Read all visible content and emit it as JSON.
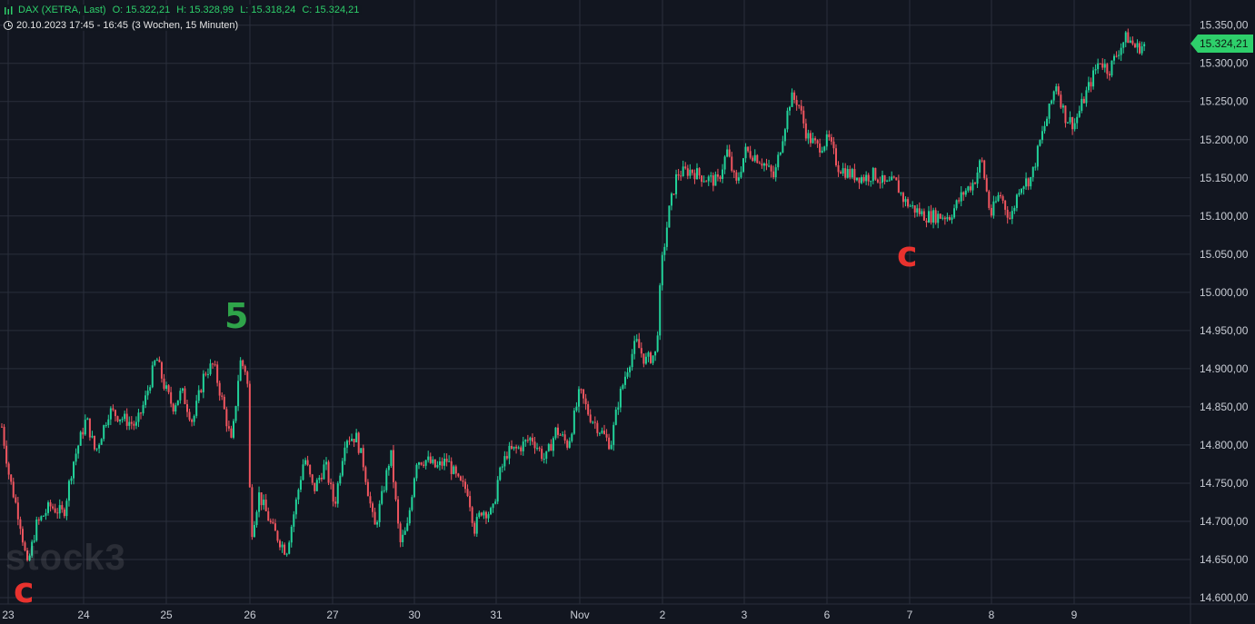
{
  "header": {
    "symbol_line": "DAX (XETRA, Last)",
    "open": "O: 15.322,21",
    "high": "H: 15.328,99",
    "low": "L: 15.318,24",
    "close": "C: 15.324,21",
    "range_text": "20.10.2023 17:45 - 16:45",
    "period_text": "(3 Wochen, 15 Minuten)"
  },
  "last_price_label": "15.324,21",
  "watermark": "stock3",
  "wave_labels": [
    "c",
    "5",
    "c"
  ],
  "colors": {
    "background": "#121620",
    "grid": "#2a2f3b",
    "up": "#22d39a",
    "down": "#f0555f",
    "axis_text": "#c8ccd4",
    "last_price": "#2ecf6b",
    "label_red": "#e8322e",
    "label_green": "#2fa44a"
  },
  "chart_data": {
    "type": "candlestick",
    "title": "DAX (XETRA, Last)",
    "interval": "15 Minuten",
    "ylim": [
      14590,
      15360
    ],
    "y_ticks": [
      {
        "v": 14600,
        "label": "14.600,00"
      },
      {
        "v": 14650,
        "label": "14.650,00"
      },
      {
        "v": 14700,
        "label": "14.700,00"
      },
      {
        "v": 14750,
        "label": "14.750,00"
      },
      {
        "v": 14800,
        "label": "14.800,00"
      },
      {
        "v": 14850,
        "label": "14.850,00"
      },
      {
        "v": 14900,
        "label": "14.900,00"
      },
      {
        "v": 14950,
        "label": "14.950,00"
      },
      {
        "v": 15000,
        "label": "15.000,00"
      },
      {
        "v": 15050,
        "label": "15.050,00"
      },
      {
        "v": 15100,
        "label": "15.100,00"
      },
      {
        "v": 15150,
        "label": "15.150,00"
      },
      {
        "v": 15200,
        "label": "15.200,00"
      },
      {
        "v": 15250,
        "label": "15.250,00"
      },
      {
        "v": 15300,
        "label": "15.300,00"
      },
      {
        "v": 15350,
        "label": "15.350,00"
      }
    ],
    "x_ticks": [
      "23",
      "24",
      "25",
      "26",
      "27",
      "30",
      "31",
      "Nov",
      "2",
      "3",
      "6",
      "7",
      "8",
      "9"
    ],
    "grid": true,
    "last_price": 15324.21,
    "anchors": [
      [
        0,
        14840
      ],
      [
        10,
        14760
      ],
      [
        22,
        14700
      ],
      [
        30,
        14640
      ],
      [
        40,
        14695
      ],
      [
        55,
        14720
      ],
      [
        70,
        14710
      ],
      [
        80,
        14775
      ],
      [
        95,
        14835
      ],
      [
        105,
        14790
      ],
      [
        120,
        14845
      ],
      [
        135,
        14835
      ],
      [
        150,
        14825
      ],
      [
        160,
        14860
      ],
      [
        172,
        14915
      ],
      [
        180,
        14880
      ],
      [
        190,
        14850
      ],
      [
        200,
        14870
      ],
      [
        212,
        14830
      ],
      [
        225,
        14895
      ],
      [
        235,
        14905
      ],
      [
        245,
        14855
      ],
      [
        255,
        14800
      ],
      [
        264,
        14910
      ],
      [
        272,
        14895
      ],
      [
        276,
        14680
      ],
      [
        285,
        14735
      ],
      [
        300,
        14690
      ],
      [
        315,
        14660
      ],
      [
        325,
        14720
      ],
      [
        335,
        14785
      ],
      [
        345,
        14740
      ],
      [
        358,
        14775
      ],
      [
        368,
        14720
      ],
      [
        380,
        14810
      ],
      [
        392,
        14810
      ],
      [
        400,
        14775
      ],
      [
        412,
        14690
      ],
      [
        420,
        14730
      ],
      [
        430,
        14790
      ],
      [
        440,
        14670
      ],
      [
        448,
        14690
      ],
      [
        458,
        14780
      ],
      [
        470,
        14780
      ],
      [
        480,
        14770
      ],
      [
        492,
        14780
      ],
      [
        505,
        14750
      ],
      [
        515,
        14740
      ],
      [
        522,
        14690
      ],
      [
        530,
        14715
      ],
      [
        542,
        14710
      ],
      [
        548,
        14755
      ],
      [
        558,
        14790
      ],
      [
        570,
        14795
      ],
      [
        585,
        14810
      ],
      [
        600,
        14780
      ],
      [
        612,
        14820
      ],
      [
        625,
        14800
      ],
      [
        638,
        14870
      ],
      [
        648,
        14840
      ],
      [
        660,
        14820
      ],
      [
        672,
        14800
      ],
      [
        680,
        14855
      ],
      [
        690,
        14900
      ],
      [
        700,
        14935
      ],
      [
        710,
        14910
      ],
      [
        722,
        14920
      ],
      [
        728,
        15035
      ],
      [
        736,
        15105
      ],
      [
        745,
        15155
      ],
      [
        760,
        15160
      ],
      [
        775,
        15150
      ],
      [
        790,
        15145
      ],
      [
        800,
        15185
      ],
      [
        810,
        15140
      ],
      [
        820,
        15185
      ],
      [
        830,
        15180
      ],
      [
        840,
        15170
      ],
      [
        852,
        15150
      ],
      [
        862,
        15210
      ],
      [
        870,
        15255
      ],
      [
        878,
        15250
      ],
      [
        888,
        15205
      ],
      [
        900,
        15190
      ],
      [
        912,
        15200
      ],
      [
        922,
        15165
      ],
      [
        935,
        15155
      ],
      [
        950,
        15150
      ],
      [
        962,
        15155
      ],
      [
        975,
        15140
      ],
      [
        985,
        15145
      ],
      [
        995,
        15120
      ],
      [
        1005,
        15110
      ],
      [
        1018,
        15100
      ],
      [
        1030,
        15100
      ],
      [
        1045,
        15100
      ],
      [
        1060,
        15130
      ],
      [
        1072,
        15145
      ],
      [
        1080,
        15175
      ],
      [
        1090,
        15100
      ],
      [
        1100,
        15130
      ],
      [
        1112,
        15095
      ],
      [
        1122,
        15140
      ],
      [
        1135,
        15150
      ],
      [
        1145,
        15200
      ],
      [
        1155,
        15240
      ],
      [
        1162,
        15275
      ],
      [
        1172,
        15230
      ],
      [
        1182,
        15220
      ],
      [
        1195,
        15260
      ],
      [
        1210,
        15305
      ],
      [
        1220,
        15290
      ],
      [
        1232,
        15320
      ],
      [
        1240,
        15335
      ],
      [
        1250,
        15320
      ],
      [
        1260,
        15324
      ]
    ]
  }
}
